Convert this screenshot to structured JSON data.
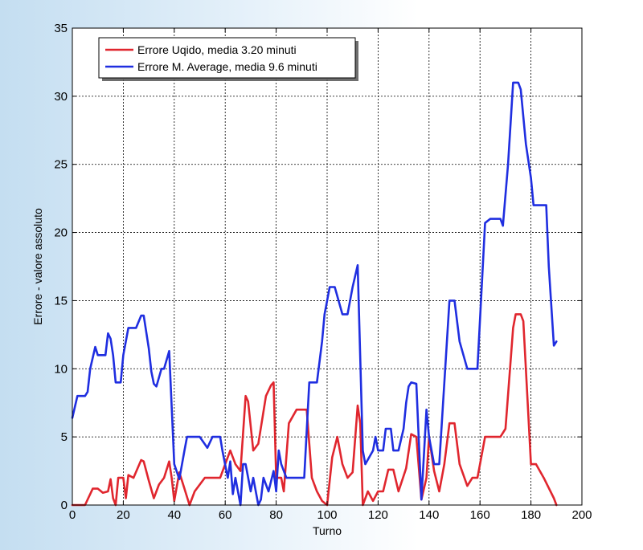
{
  "chart_data": {
    "type": "line",
    "title": "",
    "xlabel": "Turno",
    "ylabel": "Errore - valore assoluto",
    "xlim": [
      0,
      200
    ],
    "ylim": [
      0,
      35
    ],
    "xticks": [
      0,
      20,
      40,
      60,
      80,
      100,
      120,
      140,
      160,
      180,
      200
    ],
    "yticks": [
      0,
      5,
      10,
      15,
      20,
      25,
      30,
      35
    ],
    "grid": true,
    "legend_position": "top-left",
    "series": [
      {
        "name": "Errore Uqido, media 3.20 minuti",
        "color": "#e0262e",
        "points": [
          [
            0,
            0
          ],
          [
            5,
            0
          ],
          [
            8,
            1.2
          ],
          [
            10,
            1.2
          ],
          [
            12,
            0.9
          ],
          [
            14,
            1
          ],
          [
            15,
            1.9
          ],
          [
            16,
            0.5
          ],
          [
            17,
            0
          ],
          [
            18,
            2
          ],
          [
            20,
            2
          ],
          [
            21,
            0.5
          ],
          [
            22,
            2.2
          ],
          [
            24,
            2
          ],
          [
            27,
            3.3
          ],
          [
            28,
            3.2
          ],
          [
            30,
            1.8
          ],
          [
            32,
            0.5
          ],
          [
            34,
            1.5
          ],
          [
            36,
            2
          ],
          [
            38,
            3.2
          ],
          [
            39,
            2
          ],
          [
            40,
            0.3
          ],
          [
            42,
            2.4
          ],
          [
            44,
            1.2
          ],
          [
            46,
            0
          ],
          [
            48,
            1
          ],
          [
            52,
            2
          ],
          [
            58,
            2
          ],
          [
            62,
            4
          ],
          [
            64,
            3
          ],
          [
            66,
            2.5
          ],
          [
            68,
            8
          ],
          [
            69,
            7.6
          ],
          [
            71,
            4
          ],
          [
            73,
            4.5
          ],
          [
            76,
            8
          ],
          [
            78,
            8.8
          ],
          [
            79,
            9
          ],
          [
            80,
            2
          ],
          [
            82,
            2
          ],
          [
            83,
            1
          ],
          [
            85,
            6
          ],
          [
            88,
            7
          ],
          [
            92,
            7
          ],
          [
            94,
            2
          ],
          [
            96,
            1
          ],
          [
            98,
            0.3
          ],
          [
            100,
            0
          ],
          [
            102,
            3.5
          ],
          [
            104,
            5
          ],
          [
            106,
            3
          ],
          [
            108,
            2
          ],
          [
            110,
            2.4
          ],
          [
            112,
            7.3
          ],
          [
            113,
            6
          ],
          [
            114,
            0
          ],
          [
            116,
            1
          ],
          [
            118,
            0.3
          ],
          [
            120,
            1
          ],
          [
            122,
            1
          ],
          [
            124,
            2.6
          ],
          [
            126,
            2.6
          ],
          [
            128,
            1
          ],
          [
            131,
            2.7
          ],
          [
            133,
            5.2
          ],
          [
            135,
            5
          ],
          [
            137,
            0.4
          ],
          [
            139,
            2
          ],
          [
            140,
            5
          ],
          [
            142,
            2.5
          ],
          [
            144,
            1
          ],
          [
            146,
            3
          ],
          [
            148,
            6
          ],
          [
            150,
            6
          ],
          [
            152,
            3
          ],
          [
            155,
            1.4
          ],
          [
            157,
            2
          ],
          [
            159,
            2
          ],
          [
            160,
            3
          ],
          [
            162,
            5
          ],
          [
            168,
            5
          ],
          [
            170,
            5.6
          ],
          [
            173,
            13
          ],
          [
            174,
            14
          ],
          [
            176,
            14
          ],
          [
            177,
            13.5
          ],
          [
            180,
            3
          ],
          [
            182,
            3
          ],
          [
            185,
            2
          ],
          [
            189,
            0.5
          ],
          [
            190,
            0
          ]
        ]
      },
      {
        "name": "Errore M. Average, media 9.6 minuti",
        "color": "#1f2ee0",
        "points": [
          [
            0,
            6.4
          ],
          [
            2,
            8
          ],
          [
            5,
            8
          ],
          [
            6,
            8.3
          ],
          [
            7,
            10
          ],
          [
            9,
            11.6
          ],
          [
            10,
            11
          ],
          [
            13,
            11
          ],
          [
            14,
            12.6
          ],
          [
            15,
            12.2
          ],
          [
            16,
            11
          ],
          [
            17,
            9
          ],
          [
            19,
            9
          ],
          [
            20,
            11
          ],
          [
            22,
            13
          ],
          [
            25,
            13
          ],
          [
            27,
            13.9
          ],
          [
            28,
            13.9
          ],
          [
            30,
            11.5
          ],
          [
            31,
            9.8
          ],
          [
            32,
            8.9
          ],
          [
            33,
            8.7
          ],
          [
            35,
            10
          ],
          [
            36,
            10
          ],
          [
            38,
            11.3
          ],
          [
            40,
            3
          ],
          [
            42,
            1.9
          ],
          [
            44,
            4
          ],
          [
            45,
            5
          ],
          [
            50,
            5
          ],
          [
            53,
            4.2
          ],
          [
            55,
            5
          ],
          [
            58,
            5
          ],
          [
            59,
            3.9
          ],
          [
            61,
            2
          ],
          [
            62,
            3.2
          ],
          [
            63,
            0.8
          ],
          [
            64,
            2
          ],
          [
            66,
            0
          ],
          [
            67,
            3
          ],
          [
            68,
            3
          ],
          [
            70,
            1
          ],
          [
            71,
            2
          ],
          [
            73,
            0
          ],
          [
            74,
            0.4
          ],
          [
            75,
            2
          ],
          [
            76,
            1.5
          ],
          [
            77,
            1
          ],
          [
            79,
            2.5
          ],
          [
            80,
            1
          ],
          [
            81,
            4
          ],
          [
            82,
            3
          ],
          [
            84,
            2
          ],
          [
            88,
            2
          ],
          [
            91,
            2
          ],
          [
            93,
            9
          ],
          [
            96,
            9
          ],
          [
            98,
            12
          ],
          [
            99,
            14
          ],
          [
            101,
            16
          ],
          [
            103,
            16
          ],
          [
            106,
            14
          ],
          [
            108,
            14
          ],
          [
            110,
            16
          ],
          [
            112,
            17.6
          ],
          [
            114,
            4
          ],
          [
            115,
            3
          ],
          [
            118,
            4
          ],
          [
            119,
            5
          ],
          [
            120,
            4
          ],
          [
            122,
            4
          ],
          [
            123,
            5.6
          ],
          [
            125,
            5.6
          ],
          [
            126,
            4
          ],
          [
            128,
            4
          ],
          [
            130,
            5.6
          ],
          [
            131,
            7.5
          ],
          [
            132,
            8.7
          ],
          [
            133,
            9
          ],
          [
            135,
            8.9
          ],
          [
            137,
            0.4
          ],
          [
            139,
            7
          ],
          [
            140,
            5
          ],
          [
            142,
            3
          ],
          [
            144,
            3
          ],
          [
            148,
            15
          ],
          [
            150,
            15
          ],
          [
            152,
            12
          ],
          [
            155,
            10
          ],
          [
            159,
            10
          ],
          [
            162,
            20.7
          ],
          [
            164,
            21
          ],
          [
            168,
            21
          ],
          [
            169,
            20.5
          ],
          [
            171,
            25
          ],
          [
            173,
            31
          ],
          [
            175,
            31
          ],
          [
            176,
            30.5
          ],
          [
            178,
            26.5
          ],
          [
            180,
            24
          ],
          [
            181,
            22
          ],
          [
            186,
            22
          ],
          [
            187,
            17.5
          ],
          [
            189,
            11.7
          ],
          [
            190,
            12
          ]
        ]
      }
    ]
  }
}
